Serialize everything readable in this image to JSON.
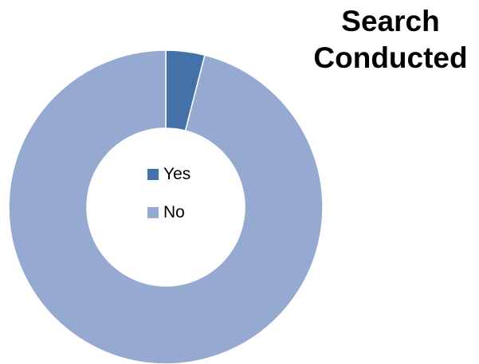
{
  "chart_data": {
    "type": "pie",
    "donut": true,
    "title_lines": [
      "Search",
      "Conducted"
    ],
    "categories": [
      "Yes",
      "No"
    ],
    "values": [
      4,
      96
    ],
    "colors": [
      "#4472A8",
      "#95A9D1"
    ],
    "legend_position": "center"
  }
}
